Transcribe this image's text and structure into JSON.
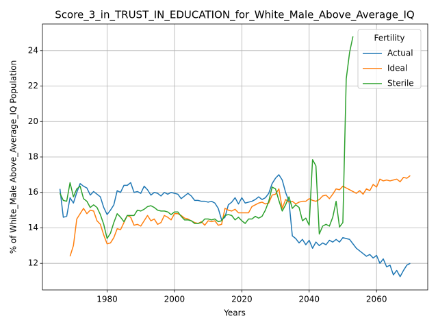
{
  "chart_data": {
    "type": "line",
    "title": "Score_3_in_TRUST_IN_EDUCATION_for_White_Male_Above_Average_IQ",
    "xlabel": "Years",
    "ylabel": "% of White_Male Above_Average_IQ Population",
    "legend_title": "Fertility",
    "legend": "upper right",
    "grid": true,
    "xlim": [
      1960.8,
      2075.2
    ],
    "ylim": [
      10.5,
      25.5
    ],
    "xticks": [
      1980,
      2000,
      2020,
      2040,
      2060
    ],
    "yticks": [
      12,
      14,
      16,
      18,
      20,
      22,
      24
    ],
    "x": [
      1966,
      1967,
      1968,
      1969,
      1970,
      1971,
      1972,
      1973,
      1974,
      1975,
      1976,
      1977,
      1978,
      1979,
      1980,
      1981,
      1982,
      1983,
      1984,
      1985,
      1986,
      1987,
      1988,
      1989,
      1990,
      1991,
      1992,
      1993,
      1994,
      1995,
      1996,
      1997,
      1998,
      1999,
      2000,
      2001,
      2002,
      2003,
      2004,
      2005,
      2006,
      2007,
      2008,
      2009,
      2010,
      2011,
      2012,
      2013,
      2014,
      2015,
      2016,
      2017,
      2018,
      2019,
      2020,
      2021,
      2022,
      2023,
      2024,
      2025,
      2026,
      2027,
      2028,
      2029,
      2030,
      2031,
      2032,
      2033,
      2034,
      2035,
      2036,
      2037,
      2038,
      2039,
      2040,
      2041,
      2042,
      2043,
      2044,
      2045,
      2046,
      2047,
      2048,
      2049,
      2050,
      2051,
      2052,
      2053,
      2054,
      2055,
      2056,
      2057,
      2058,
      2059,
      2060,
      2061,
      2062,
      2063,
      2064,
      2065,
      2066,
      2067,
      2068,
      2069,
      2070
    ],
    "series": [
      {
        "name": "Actual",
        "color": "#1f77b4",
        "values": [
          16.2,
          14.6,
          14.65,
          15.7,
          15.4,
          16.0,
          16.5,
          16.35,
          16.25,
          15.85,
          16.05,
          15.9,
          15.75,
          15.15,
          14.75,
          15.0,
          15.3,
          16.1,
          16.0,
          16.4,
          16.4,
          16.55,
          16.0,
          16.05,
          15.95,
          16.35,
          16.15,
          15.85,
          16.0,
          15.95,
          15.8,
          16.0,
          15.9,
          16.0,
          15.95,
          15.9,
          15.65,
          15.8,
          15.95,
          15.8,
          15.55,
          15.55,
          15.5,
          15.5,
          15.45,
          15.5,
          15.4,
          15.1,
          14.45,
          14.6,
          15.3,
          15.45,
          15.7,
          15.35,
          15.7,
          15.4,
          15.45,
          15.5,
          15.6,
          15.75,
          15.6,
          15.7,
          15.95,
          16.5,
          16.8,
          17.0,
          16.7,
          16.0,
          15.5,
          13.55,
          13.4,
          13.15,
          13.35,
          13.05,
          13.3,
          12.85,
          13.2,
          13.0,
          13.15,
          13.05,
          13.3,
          13.2,
          13.35,
          13.2,
          13.45,
          13.4,
          13.35,
          13.1,
          12.85,
          12.7,
          12.55,
          12.4,
          12.5,
          12.3,
          12.45,
          12.0,
          12.25,
          11.8,
          11.9,
          11.35,
          11.6,
          11.25,
          11.6,
          11.9,
          12.0
        ]
      },
      {
        "name": "Ideal",
        "color": "#ff7f0e",
        "values": [
          null,
          null,
          null,
          12.4,
          13.0,
          14.5,
          14.8,
          15.1,
          14.8,
          15.0,
          14.95,
          14.4,
          14.2,
          13.6,
          13.1,
          13.15,
          13.45,
          13.95,
          13.9,
          14.3,
          14.7,
          14.6,
          14.15,
          14.2,
          14.1,
          14.4,
          14.7,
          14.4,
          14.5,
          14.2,
          14.3,
          14.7,
          14.6,
          14.45,
          14.8,
          14.8,
          14.7,
          14.55,
          14.5,
          14.4,
          14.3,
          14.25,
          14.35,
          14.15,
          14.4,
          14.35,
          14.4,
          14.15,
          14.2,
          15.1,
          15.0,
          14.95,
          15.05,
          14.85,
          14.85,
          14.85,
          14.85,
          15.2,
          15.3,
          15.4,
          15.45,
          15.35,
          15.4,
          15.85,
          15.9,
          16.2,
          15.1,
          15.6,
          15.45,
          15.5,
          15.35,
          15.45,
          15.5,
          15.5,
          15.65,
          15.55,
          15.5,
          15.6,
          15.8,
          15.85,
          15.65,
          15.9,
          16.2,
          16.15,
          16.35,
          16.25,
          16.15,
          16.05,
          15.95,
          16.1,
          15.9,
          16.2,
          16.1,
          16.45,
          16.3,
          16.75,
          16.65,
          16.7,
          16.65,
          16.7,
          16.75,
          16.6,
          16.85,
          16.8,
          16.95
        ]
      },
      {
        "name": "Sterile",
        "color": "#2ca02c",
        "values": [
          15.95,
          15.55,
          15.5,
          16.55,
          15.75,
          16.2,
          16.35,
          15.65,
          15.5,
          15.15,
          15.3,
          15.15,
          14.75,
          14.2,
          13.4,
          13.7,
          14.3,
          14.8,
          14.6,
          14.35,
          14.7,
          14.7,
          14.7,
          15.0,
          14.95,
          15.05,
          15.2,
          15.25,
          15.15,
          15.0,
          14.95,
          14.95,
          14.9,
          14.75,
          14.9,
          14.9,
          14.65,
          14.45,
          14.45,
          14.4,
          14.25,
          14.25,
          14.3,
          14.5,
          14.5,
          14.45,
          14.5,
          14.35,
          14.4,
          14.7,
          14.75,
          14.7,
          14.45,
          14.6,
          14.4,
          14.25,
          14.5,
          14.5,
          14.65,
          14.55,
          14.65,
          15.0,
          15.5,
          16.3,
          16.2,
          15.55,
          14.95,
          15.3,
          15.75,
          15.1,
          15.3,
          15.15,
          14.4,
          14.55,
          14.15,
          17.85,
          17.5,
          13.65,
          14.1,
          14.2,
          14.1,
          14.6,
          15.5,
          14.05,
          14.3,
          22.4,
          23.9,
          24.8,
          null,
          null,
          null,
          null,
          null,
          null,
          null,
          null,
          null,
          null,
          null,
          null,
          null,
          null,
          null,
          null,
          null
        ]
      }
    ]
  }
}
